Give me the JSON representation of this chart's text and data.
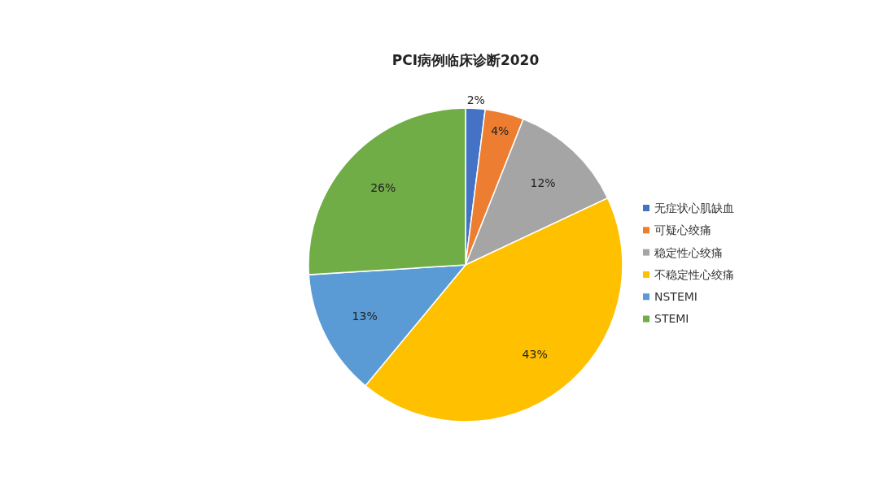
{
  "chart_data": {
    "type": "pie",
    "title": "PCI病例临床诊断2020",
    "categories": [
      "无症状心肌缺血",
      "可疑心绞痛",
      "稳定性心绞痛",
      "不稳定性心绞痛",
      "NSTEMI",
      "STEMI"
    ],
    "values": [
      2,
      4,
      12,
      43,
      13,
      26
    ],
    "colors": [
      "#4472c4",
      "#ed7d31",
      "#a5a5a5",
      "#ffc000",
      "#5b9bd5",
      "#70ad47"
    ],
    "value_labels": [
      "2%",
      "4%",
      "12%",
      "43%",
      "13%",
      "26%"
    ],
    "legend": "right"
  }
}
